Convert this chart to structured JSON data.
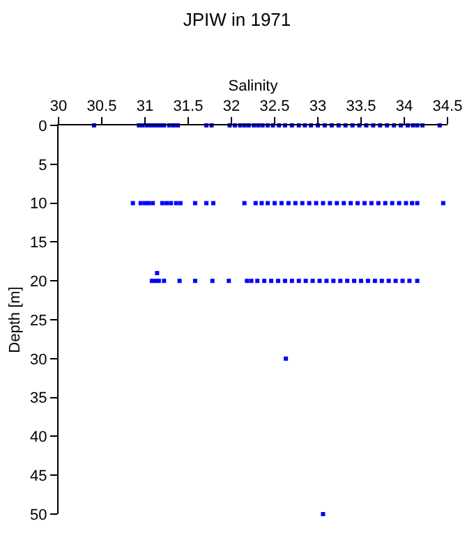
{
  "chart_data": {
    "type": "scatter",
    "title": "JPIW in 1971",
    "xlabel": "Salinity",
    "ylabel": "Depth [m]",
    "x": [
      30.41,
      30.93,
      30.97,
      31.02,
      31.06,
      31.1,
      31.14,
      31.18,
      31.22,
      31.28,
      31.33,
      31.38,
      31.71,
      31.77,
      31.98,
      32.04,
      32.1,
      32.15,
      32.2,
      32.26,
      32.31,
      32.36,
      32.42,
      32.48,
      32.55,
      32.62,
      32.7,
      32.78,
      32.85,
      32.92,
      33.0,
      33.08,
      33.16,
      33.24,
      33.32,
      33.4,
      33.48,
      33.56,
      33.64,
      33.72,
      33.8,
      33.88,
      33.96,
      34.04,
      34.1,
      34.15,
      34.21,
      34.41,
      30.86,
      30.95,
      31.0,
      31.04,
      31.09,
      31.2,
      31.25,
      31.3,
      31.36,
      31.41,
      31.58,
      31.71,
      31.79,
      32.15,
      32.28,
      32.35,
      32.42,
      32.5,
      32.58,
      32.66,
      32.74,
      32.82,
      32.9,
      32.98,
      33.06,
      33.14,
      33.22,
      33.3,
      33.38,
      33.46,
      33.54,
      33.62,
      33.7,
      33.78,
      33.86,
      33.94,
      34.02,
      34.09,
      34.15,
      34.45,
      31.08,
      31.12,
      31.16,
      31.22,
      31.4,
      31.58,
      31.78,
      31.97,
      32.18,
      32.23,
      32.3,
      32.38,
      32.46,
      32.54,
      32.62,
      32.7,
      32.78,
      32.86,
      32.94,
      33.02,
      33.1,
      33.18,
      33.26,
      33.34,
      33.42,
      33.5,
      33.58,
      33.66,
      33.74,
      33.82,
      33.9,
      33.98,
      34.06,
      34.15,
      31.14,
      32.63,
      33.06
    ],
    "series": [
      {
        "color": "#0000ff",
        "values": [
          0,
          0,
          0,
          0,
          0,
          0,
          0,
          0,
          0,
          0,
          0,
          0,
          0,
          0,
          0,
          0,
          0,
          0,
          0,
          0,
          0,
          0,
          0,
          0,
          0,
          0,
          0,
          0,
          0,
          0,
          0,
          0,
          0,
          0,
          0,
          0,
          0,
          0,
          0,
          0,
          0,
          0,
          0,
          0,
          0,
          0,
          0,
          0,
          10,
          10,
          10,
          10,
          10,
          10,
          10,
          10,
          10,
          10,
          10,
          10,
          10,
          10,
          10,
          10,
          10,
          10,
          10,
          10,
          10,
          10,
          10,
          10,
          10,
          10,
          10,
          10,
          10,
          10,
          10,
          10,
          10,
          10,
          10,
          10,
          10,
          10,
          10,
          10,
          20,
          20,
          20,
          20,
          20,
          20,
          20,
          20,
          20,
          20,
          20,
          20,
          20,
          20,
          20,
          20,
          20,
          20,
          20,
          20,
          20,
          20,
          20,
          20,
          20,
          20,
          20,
          20,
          20,
          20,
          20,
          20,
          20,
          20,
          19,
          30,
          50
        ]
      }
    ],
    "xlim": [
      30,
      34.5
    ],
    "xticks": [
      30,
      30.5,
      31,
      31.5,
      32,
      32.5,
      33,
      33.5,
      34,
      34.5
    ],
    "ylim": [
      50,
      0
    ],
    "yticks": [
      0,
      5,
      10,
      15,
      20,
      25,
      30,
      35,
      40,
      45,
      50
    ],
    "marker": "square"
  }
}
